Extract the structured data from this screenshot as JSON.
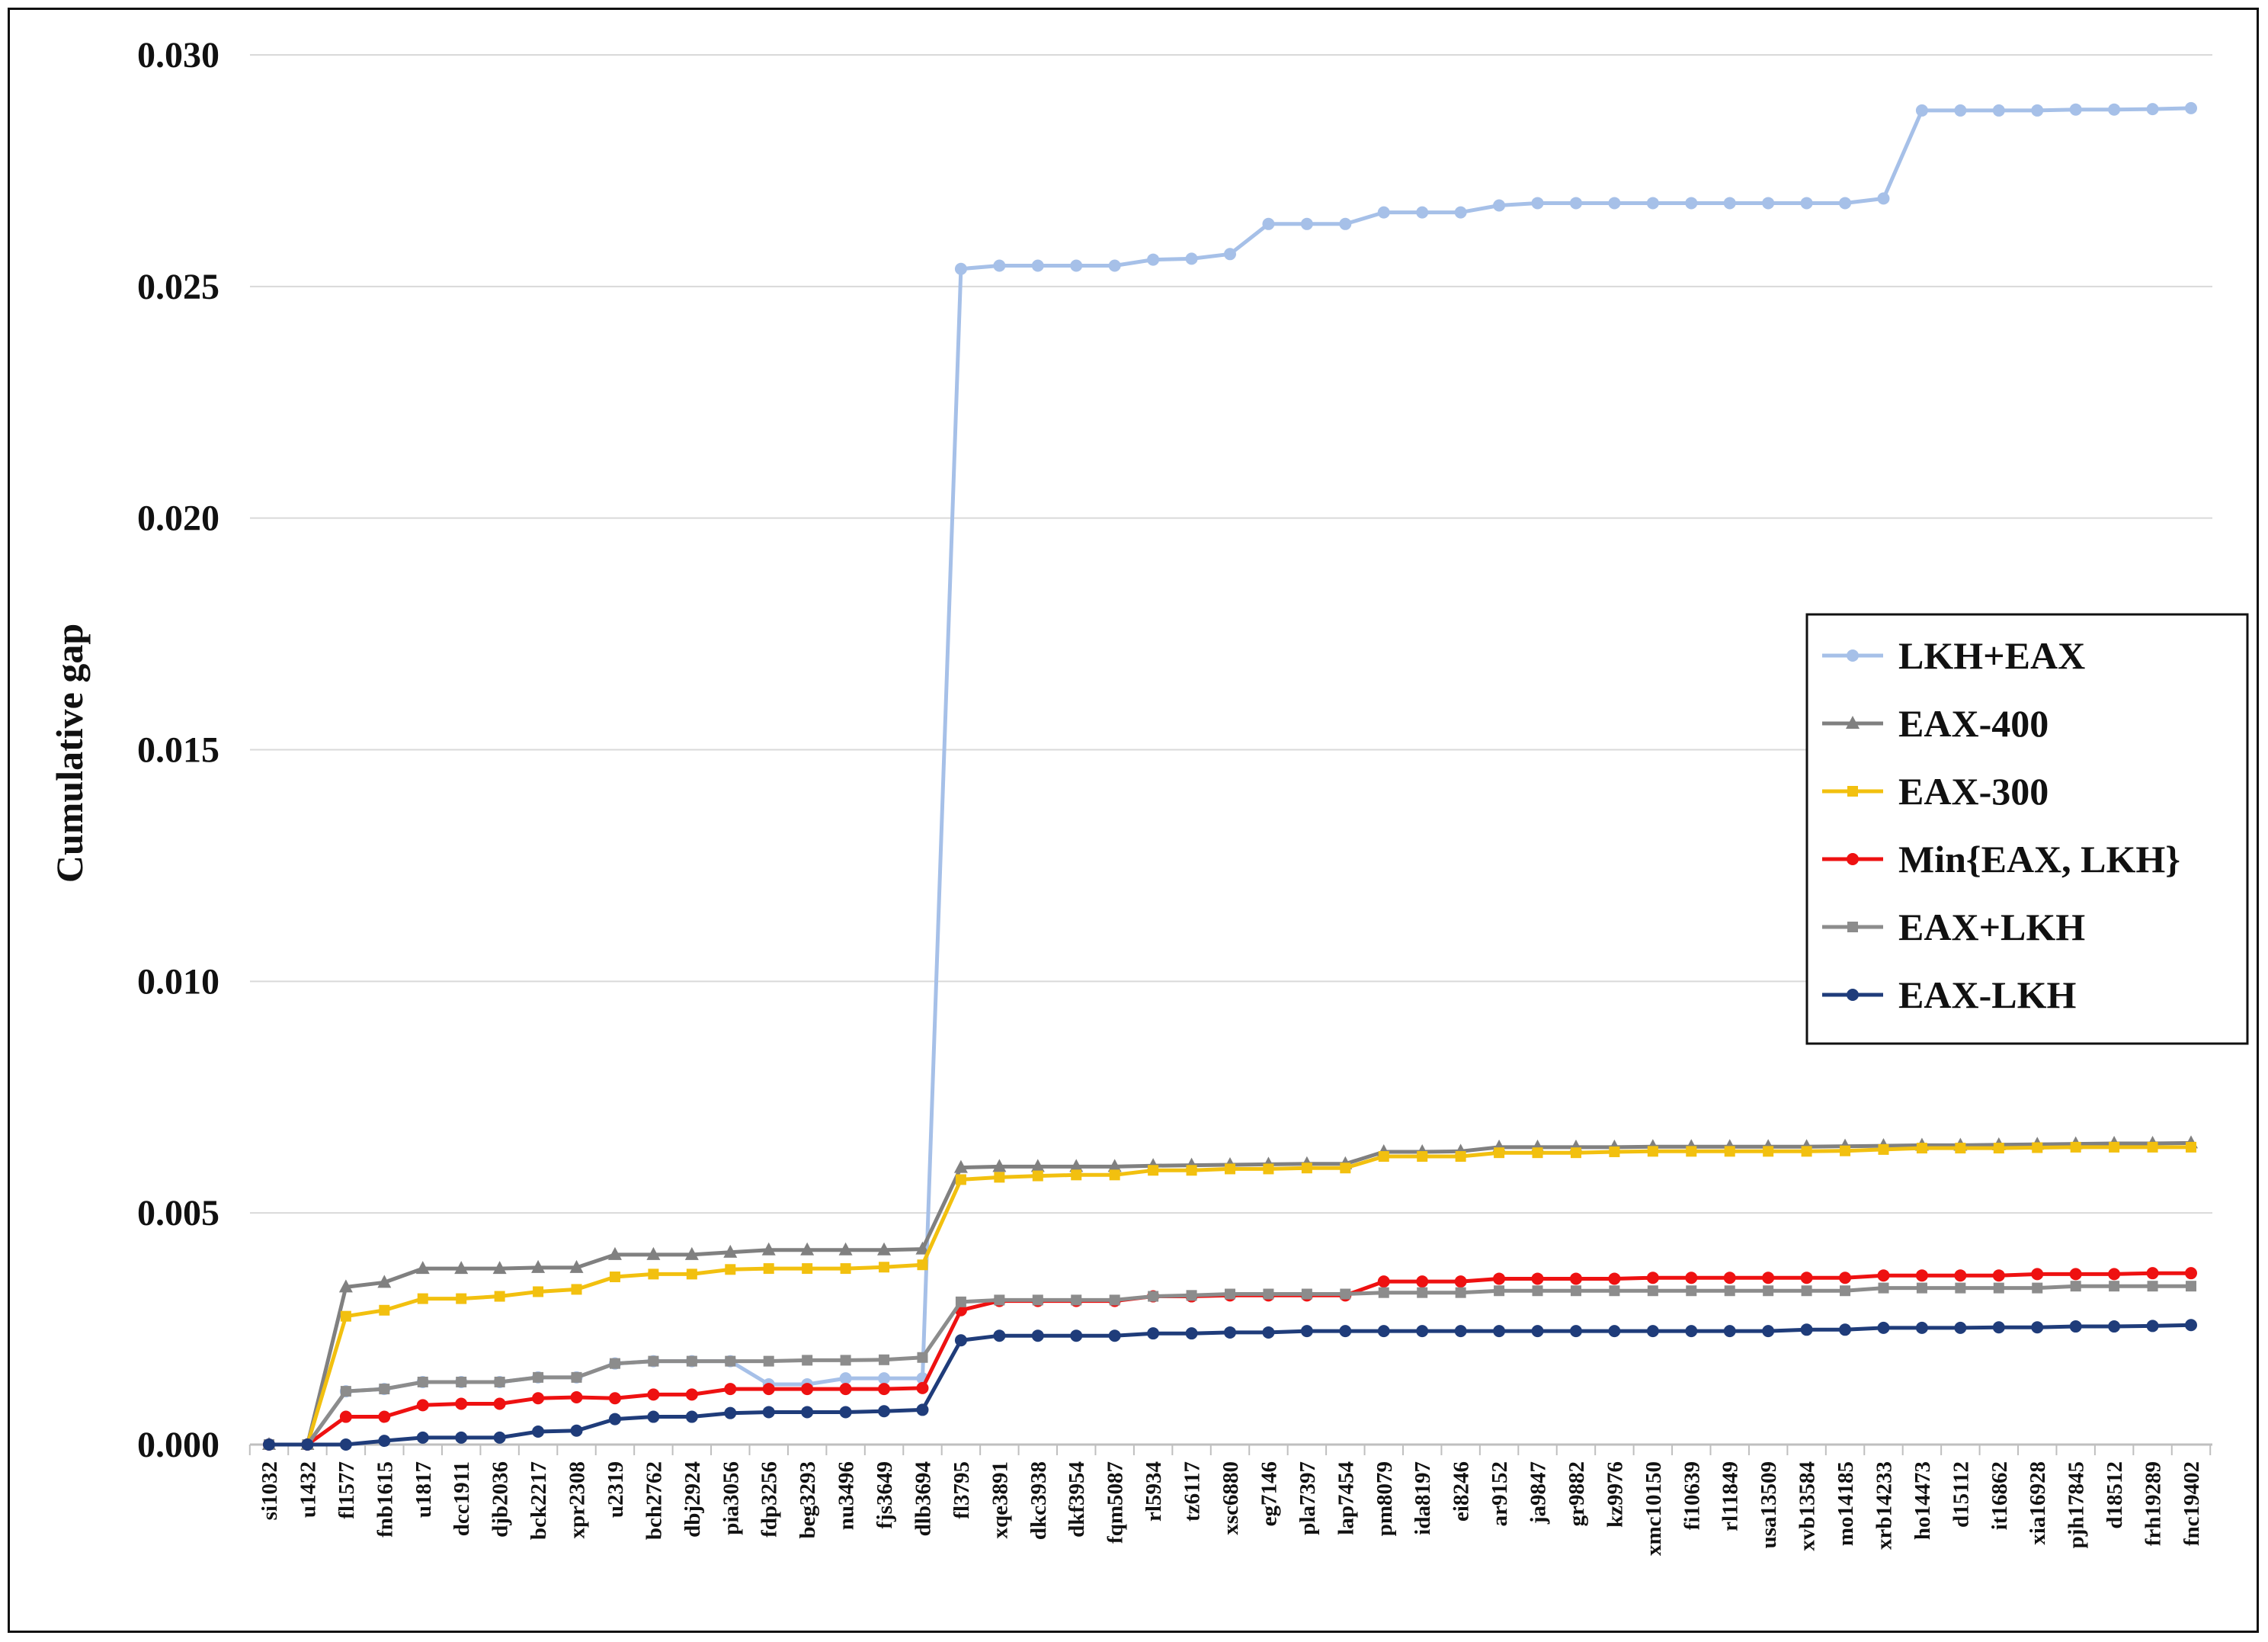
{
  "chart_data": {
    "type": "line",
    "title": "",
    "xlabel": "",
    "ylabel": "Cumulative gap",
    "ylim": [
      0,
      0.03
    ],
    "yticks": [
      "0.000",
      "0.005",
      "0.010",
      "0.015",
      "0.020",
      "0.025",
      "0.030"
    ],
    "ytick_values": [
      0,
      0.005,
      0.01,
      0.015,
      0.02,
      0.025,
      0.03
    ],
    "grid": "horizontal",
    "legend_position": "right",
    "categories": [
      "si1032",
      "u1432",
      "fl1577",
      "fnb1615",
      "u1817",
      "dcc1911",
      "djb2036",
      "bck2217",
      "xpr2308",
      "u2319",
      "bch2762",
      "dbj2924",
      "pia3056",
      "fdp3256",
      "beg3293",
      "nu3496",
      "fjs3649",
      "dlb3694",
      "fl3795",
      "xqe3891",
      "dkc3938",
      "dkf3954",
      "fqm5087",
      "rl5934",
      "tz6117",
      "xsc6880",
      "eg7146",
      "pla7397",
      "lap7454",
      "pm8079",
      "ida8197",
      "ei8246",
      "ar9152",
      "ja9847",
      "gr9882",
      "kz9976",
      "xmc10150",
      "fi10639",
      "rl11849",
      "usa13509",
      "xvb13584",
      "mo14185",
      "xrb14233",
      "ho14473",
      "d15112",
      "it16862",
      "xia16928",
      "pjh17845",
      "d18512",
      "frh19289",
      "fnc19402"
    ],
    "x_tick_labels": [
      "si1032",
      "u1432",
      "fl1577",
      "fnb1615",
      "u1817",
      "dcc1911",
      "djb2036",
      "bck2217",
      "xpr2308",
      "u2319",
      "bch2762",
      "dbj2924",
      "pia3056",
      "fdp3256",
      "beg3293",
      "nu3496",
      "fjs3649",
      "dlb3694",
      "fl3795",
      "xqe3891",
      "dkc3938",
      "dkf3954",
      "fqm5087",
      "rl5934",
      "tz6117",
      "xsc6880",
      "eg7146",
      "pla7397",
      "lap7454",
      "pm8079",
      "ida8197",
      "ei8246",
      "ar9152",
      "ja9847",
      "gr9882",
      "kz9976",
      "xmc10150",
      "fi10639",
      "rl11849",
      "usa13509",
      "xvb13584",
      "mo14185",
      "xrb14233",
      "ho14473",
      "d15112",
      "it16862",
      "xia16928",
      "pjh17845",
      "d18512",
      "frh19289",
      "fnc19402"
    ],
    "series": [
      {
        "name": "LKH+EAX",
        "color": "#a6c0e8",
        "marker": "circle",
        "values": [
          0.0,
          0.0,
          0.00115,
          0.0012,
          0.00135,
          0.00135,
          0.00135,
          0.00145,
          0.00145,
          0.00175,
          0.0018,
          0.0018,
          0.0018,
          0.0013,
          0.0013,
          0.00143,
          0.00143,
          0.00143,
          0.02538,
          0.02545,
          0.02545,
          0.02545,
          0.02545,
          0.02558,
          0.0256,
          0.0257,
          0.02635,
          0.02635,
          0.02635,
          0.0266,
          0.0266,
          0.0266,
          0.02675,
          0.0268,
          0.0268,
          0.0268,
          0.0268,
          0.0268,
          0.0268,
          0.0268,
          0.0268,
          0.0268,
          0.0269,
          0.0288,
          0.0288,
          0.0288,
          0.0288,
          0.02882,
          0.02882,
          0.02883,
          0.02885
        ]
      },
      {
        "name": "EAX-400",
        "color": "#808080",
        "marker": "triangle",
        "values": [
          0.0,
          0.0,
          0.0034,
          0.0035,
          0.0038,
          0.0038,
          0.0038,
          0.00382,
          0.00382,
          0.0041,
          0.0041,
          0.0041,
          0.00415,
          0.0042,
          0.0042,
          0.0042,
          0.0042,
          0.00422,
          0.00598,
          0.006,
          0.006,
          0.006,
          0.006,
          0.00602,
          0.00603,
          0.00604,
          0.00605,
          0.00606,
          0.00606,
          0.00632,
          0.00632,
          0.00633,
          0.00642,
          0.00642,
          0.00642,
          0.00642,
          0.00643,
          0.00643,
          0.00643,
          0.00643,
          0.00643,
          0.00644,
          0.00645,
          0.00646,
          0.00646,
          0.00647,
          0.00648,
          0.00649,
          0.0065,
          0.0065,
          0.00651
        ]
      },
      {
        "name": "EAX-300",
        "color": "#f2c00f",
        "marker": "square",
        "values": [
          0.0,
          0.0,
          0.00277,
          0.0029,
          0.00315,
          0.00315,
          0.0032,
          0.0033,
          0.00335,
          0.00362,
          0.00368,
          0.00368,
          0.00378,
          0.0038,
          0.0038,
          0.0038,
          0.00383,
          0.00388,
          0.00572,
          0.00577,
          0.0058,
          0.00582,
          0.00582,
          0.00592,
          0.00592,
          0.00595,
          0.00595,
          0.00597,
          0.00597,
          0.00622,
          0.00622,
          0.00622,
          0.0063,
          0.0063,
          0.0063,
          0.00632,
          0.00633,
          0.00633,
          0.00633,
          0.00633,
          0.00633,
          0.00634,
          0.00637,
          0.0064,
          0.0064,
          0.0064,
          0.00641,
          0.00642,
          0.00642,
          0.00642,
          0.00642
        ]
      },
      {
        "name": "Min{EAX, LKH}",
        "color": "#ee1111",
        "marker": "circle",
        "values": [
          0.0,
          0.0,
          0.0006,
          0.0006,
          0.00085,
          0.00088,
          0.00088,
          0.001,
          0.00102,
          0.001,
          0.00108,
          0.00108,
          0.0012,
          0.0012,
          0.0012,
          0.0012,
          0.0012,
          0.00122,
          0.0029,
          0.0031,
          0.0031,
          0.0031,
          0.0031,
          0.0032,
          0.0032,
          0.00322,
          0.00322,
          0.00322,
          0.00322,
          0.00352,
          0.00352,
          0.00352,
          0.00358,
          0.00358,
          0.00358,
          0.00358,
          0.0036,
          0.0036,
          0.0036,
          0.0036,
          0.0036,
          0.0036,
          0.00365,
          0.00365,
          0.00365,
          0.00365,
          0.00368,
          0.00368,
          0.00368,
          0.0037,
          0.0037
        ]
      },
      {
        "name": "EAX+LKH",
        "color": "#8c8c8c",
        "marker": "square",
        "values": [
          0.0,
          0.0,
          0.00115,
          0.0012,
          0.00135,
          0.00135,
          0.00135,
          0.00145,
          0.00145,
          0.00175,
          0.0018,
          0.0018,
          0.0018,
          0.0018,
          0.00182,
          0.00182,
          0.00183,
          0.00188,
          0.00308,
          0.00312,
          0.00312,
          0.00312,
          0.00312,
          0.0032,
          0.00322,
          0.00325,
          0.00325,
          0.00325,
          0.00325,
          0.00328,
          0.00328,
          0.00328,
          0.00332,
          0.00332,
          0.00332,
          0.00332,
          0.00332,
          0.00332,
          0.00332,
          0.00332,
          0.00332,
          0.00332,
          0.00338,
          0.00338,
          0.00338,
          0.00338,
          0.00338,
          0.00342,
          0.00342,
          0.00342,
          0.00342
        ]
      },
      {
        "name": "EAX-LKH",
        "color": "#1f3c7a",
        "marker": "circle",
        "values": [
          0.0,
          0.0,
          0.0,
          8e-05,
          0.00015,
          0.00015,
          0.00015,
          0.00028,
          0.0003,
          0.00055,
          0.0006,
          0.0006,
          0.00068,
          0.0007,
          0.0007,
          0.0007,
          0.00072,
          0.00075,
          0.00225,
          0.00235,
          0.00235,
          0.00235,
          0.00235,
          0.0024,
          0.0024,
          0.00242,
          0.00242,
          0.00245,
          0.00245,
          0.00245,
          0.00245,
          0.00245,
          0.00245,
          0.00245,
          0.00245,
          0.00245,
          0.00245,
          0.00245,
          0.00245,
          0.00245,
          0.00248,
          0.00248,
          0.00252,
          0.00252,
          0.00252,
          0.00253,
          0.00253,
          0.00255,
          0.00255,
          0.00256,
          0.00258
        ]
      }
    ]
  }
}
